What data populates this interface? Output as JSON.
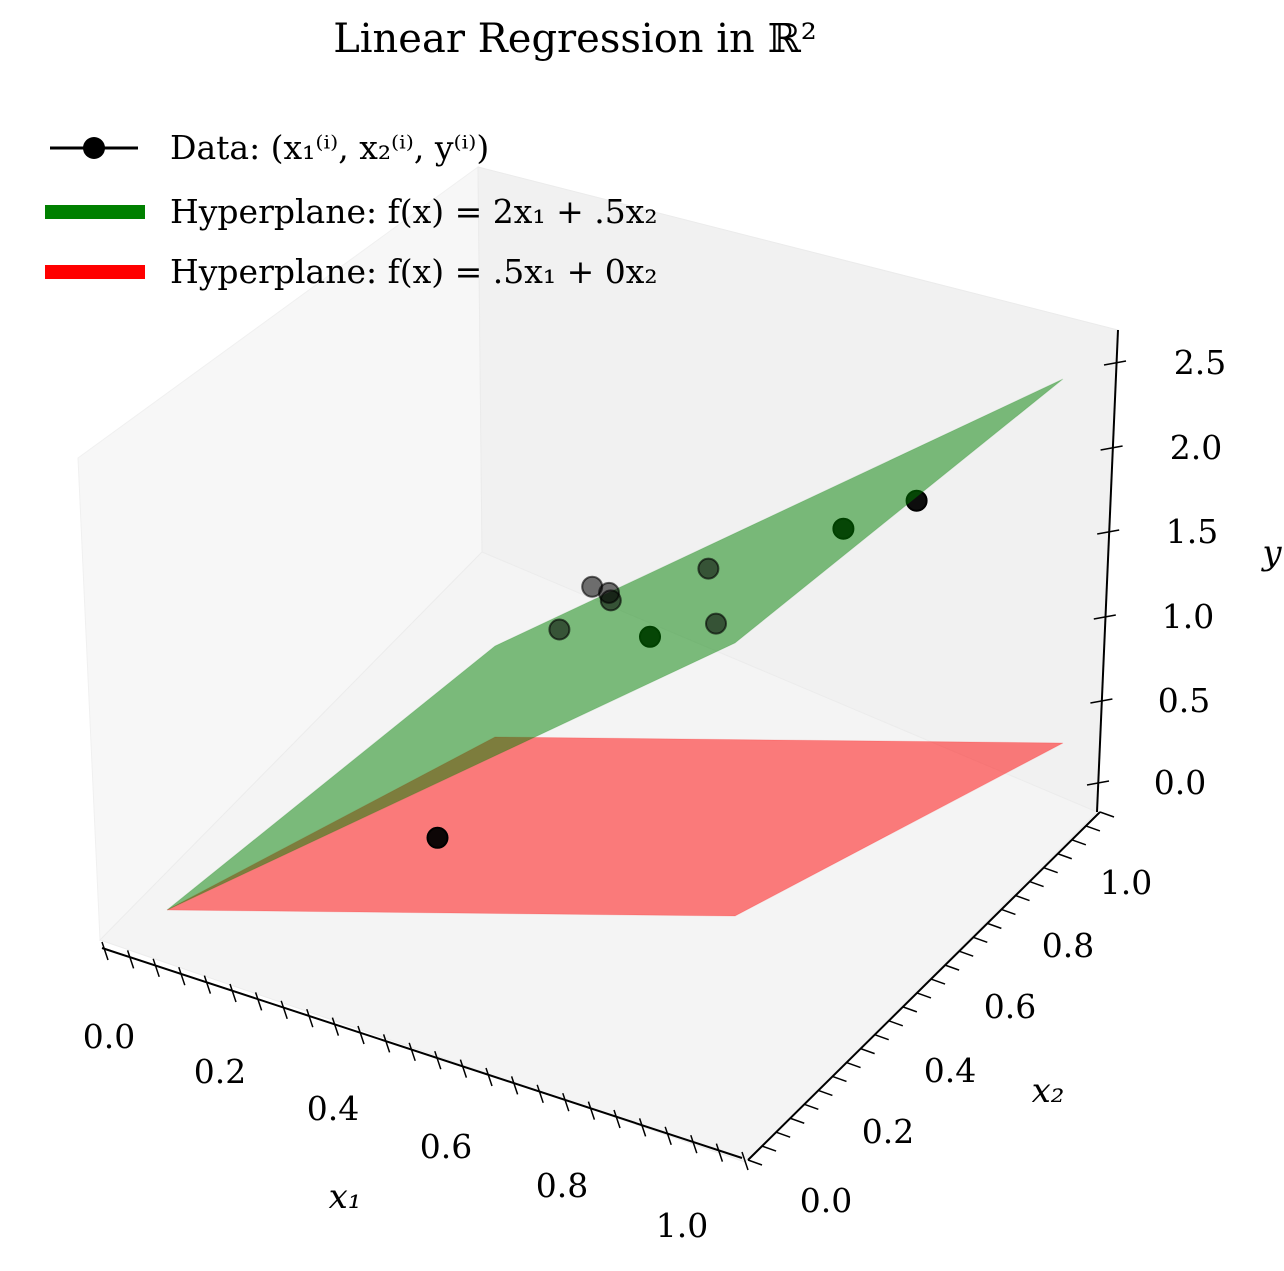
{
  "chart_data": {
    "type": "scatter",
    "title": "Linear Regression in ℝ²",
    "xlabel": "x₁",
    "ylabel": "x₂",
    "zlabel": "y",
    "xlim": [
      0,
      1
    ],
    "ylim": [
      0,
      1
    ],
    "zlim": [
      0,
      2.5
    ],
    "x_ticks": [
      "0.0",
      "0.2",
      "0.4",
      "0.6",
      "0.8",
      "1.0"
    ],
    "y_ticks": [
      "0.0",
      "0.2",
      "0.4",
      "0.6",
      "0.8",
      "1.0"
    ],
    "z_ticks": [
      "0.0",
      "0.5",
      "1.0",
      "1.5",
      "2.0",
      "2.5"
    ],
    "legend_position": "top-left",
    "series": [
      {
        "name": "Data: (x₁⁽ⁱ⁾, x₂⁽ⁱ⁾, y⁽ⁱ⁾)",
        "kind": "scatter",
        "color": "#000000",
        "points": [
          {
            "x": 0.43,
            "y": 0.08,
            "z": 0.55
          },
          {
            "x": 0.2,
            "y": 0.85,
            "z": 0.84
          },
          {
            "x": 0.2,
            "y": 0.95,
            "z": 0.98
          },
          {
            "x": 0.25,
            "y": 0.92,
            "z": 0.96
          },
          {
            "x": 0.27,
            "y": 0.88,
            "z": 1.05
          },
          {
            "x": 0.55,
            "y": 0.52,
            "z": 1.3
          },
          {
            "x": 0.52,
            "y": 0.75,
            "z": 1.44
          },
          {
            "x": 0.7,
            "y": 0.85,
            "z": 1.66
          },
          {
            "x": 0.8,
            "y": 0.9,
            "z": 1.82
          },
          {
            "x": 0.88,
            "y": 0.15,
            "z": 1.9
          }
        ]
      },
      {
        "name": "Hyperplane: f(x) = 2x₁ + .5x₂",
        "kind": "plane",
        "color": "#008000",
        "coef": [
          2,
          0.5
        ]
      },
      {
        "name": "Hyperplane: f(x) = .5x₁ + 0x₂",
        "kind": "plane",
        "color": "#ff0000",
        "coef": [
          0.5,
          0
        ]
      }
    ]
  }
}
